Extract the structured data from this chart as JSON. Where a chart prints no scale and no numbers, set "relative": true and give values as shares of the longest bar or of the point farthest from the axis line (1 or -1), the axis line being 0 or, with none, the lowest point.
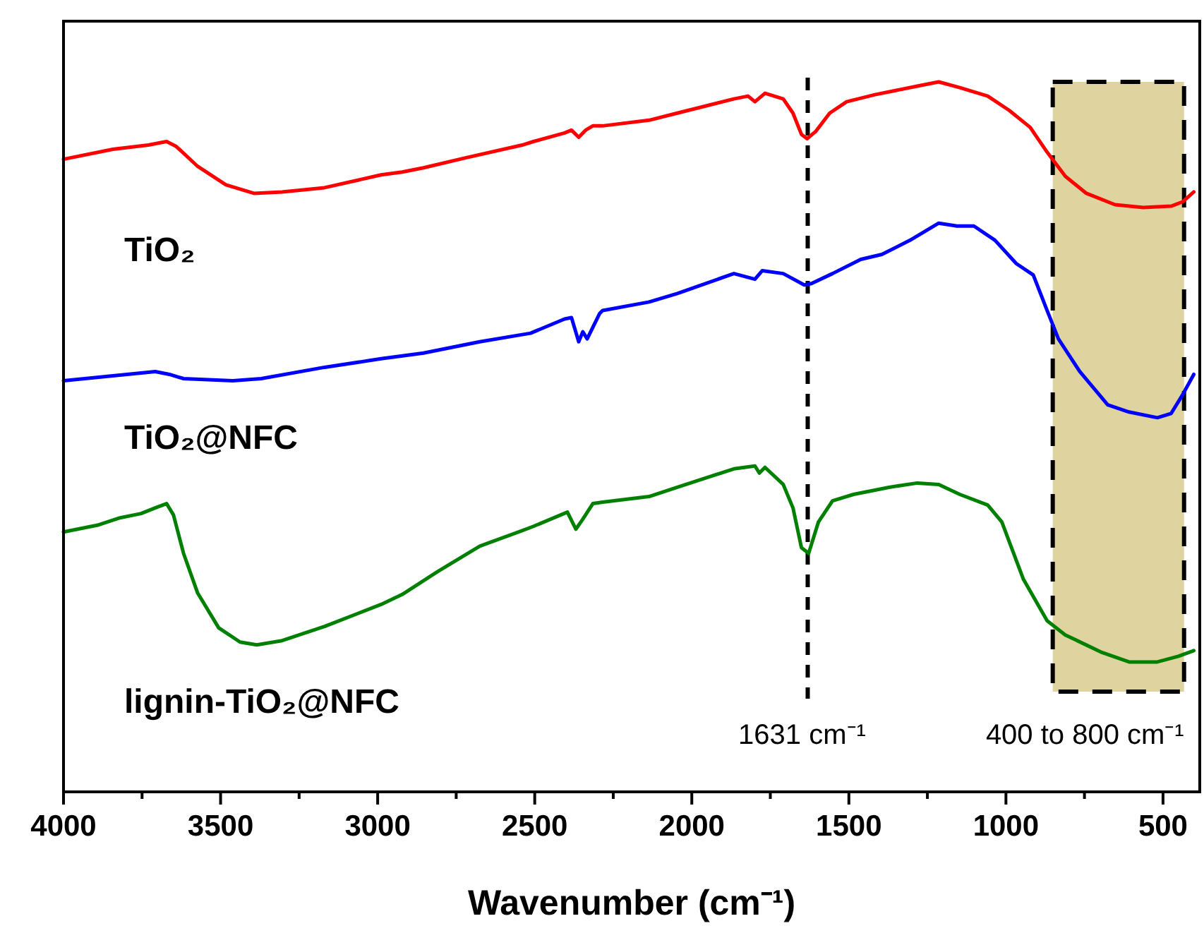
{
  "chart_data": {
    "type": "line",
    "xlabel": "Wavenumber (cm⁻¹)",
    "relative": true,
    "line_style": "solid",
    "marker": "none",
    "xlim": [
      4000,
      383
    ],
    "xticks": [
      4000,
      {
        "value": 3750,
        "label": null
      },
      3500,
      {
        "value": 3250,
        "label": null
      },
      3000,
      {
        "value": 2750,
        "label": null
      },
      2500,
      {
        "value": 2250,
        "label": null
      },
      2000,
      {
        "value": 1750,
        "label": null
      },
      1500,
      {
        "value": 1250,
        "label": null
      },
      1000,
      {
        "value": 750,
        "label": null
      },
      500
    ],
    "ref_lines": [
      {
        "axis": "x",
        "value": 1631,
        "label": "1631 cm⁻¹",
        "line_style": "dashed",
        "color": "#000000"
      }
    ],
    "bands": [
      {
        "axis": "x",
        "from": 851,
        "to": 433,
        "label": "400 to 800 cm⁻¹",
        "color": "#dfd4a0"
      }
    ],
    "series": [
      {
        "name": "TiO₂",
        "color": "#ff0000",
        "x": [
          4000,
          3843,
          3730,
          3672,
          3641,
          3573,
          3483,
          3394,
          3304,
          3169,
          2989,
          2922,
          2854,
          2720,
          2540,
          2504,
          2405,
          2383,
          2360,
          2338,
          2315,
          2284,
          2136,
          2046,
          1866,
          1821,
          1799,
          1767,
          1709,
          1678,
          1651,
          1633,
          1606,
          1561,
          1507,
          1417,
          1282,
          1214,
          1147,
          1058,
          990,
          923,
          869,
          811,
          744,
          653,
          563,
          474,
          438,
          402
        ],
        "values": [
          0.891,
          0.905,
          0.911,
          0.916,
          0.909,
          0.881,
          0.855,
          0.843,
          0.845,
          0.851,
          0.869,
          0.873,
          0.879,
          0.893,
          0.911,
          0.916,
          0.928,
          0.932,
          0.922,
          0.932,
          0.938,
          0.938,
          0.946,
          0.956,
          0.976,
          0.98,
          0.972,
          0.984,
          0.976,
          0.956,
          0.926,
          0.92,
          0.93,
          0.956,
          0.972,
          0.982,
          0.994,
          1.0,
          0.992,
          0.98,
          0.96,
          0.936,
          0.901,
          0.867,
          0.843,
          0.827,
          0.823,
          0.825,
          0.831,
          0.845
        ]
      },
      {
        "name": "TiO₂@NFC",
        "color": "#0000ff",
        "x": [
          4000,
          3843,
          3708,
          3663,
          3618,
          3461,
          3371,
          3169,
          2989,
          2854,
          2675,
          2540,
          2513,
          2405,
          2383,
          2360,
          2347,
          2333,
          2293,
          2284,
          2136,
          2046,
          1866,
          1799,
          1776,
          1709,
          1642,
          1619,
          1552,
          1462,
          1395,
          1305,
          1214,
          1156,
          1102,
          1035,
          967,
          913,
          869,
          833,
          765,
          676,
          608,
          518,
          474,
          438,
          402
        ],
        "values": [
          0.579,
          0.586,
          0.592,
          0.588,
          0.582,
          0.579,
          0.582,
          0.598,
          0.61,
          0.618,
          0.634,
          0.644,
          0.646,
          0.666,
          0.668,
          0.634,
          0.648,
          0.638,
          0.674,
          0.678,
          0.69,
          0.702,
          0.73,
          0.722,
          0.734,
          0.73,
          0.714,
          0.716,
          0.73,
          0.75,
          0.757,
          0.777,
          0.801,
          0.797,
          0.797,
          0.777,
          0.744,
          0.728,
          0.678,
          0.638,
          0.592,
          0.545,
          0.535,
          0.527,
          0.533,
          0.559,
          0.588
        ]
      },
      {
        "name": "lignin-TiO₂@NFC",
        "color": "#008000",
        "x": [
          4000,
          3888,
          3820,
          3753,
          3708,
          3672,
          3650,
          3618,
          3573,
          3506,
          3438,
          3385,
          3304,
          3169,
          2989,
          2922,
          2810,
          2675,
          2540,
          2504,
          2396,
          2369,
          2347,
          2315,
          2284,
          2136,
          2046,
          1866,
          1799,
          1785,
          1767,
          1709,
          1678,
          1651,
          1628,
          1597,
          1552,
          1485,
          1372,
          1282,
          1214,
          1147,
          1058,
          1013,
          945,
          869,
          811,
          698,
          608,
          518,
          451,
          402
        ],
        "values": [
          0.366,
          0.376,
          0.386,
          0.392,
          0.4,
          0.406,
          0.39,
          0.336,
          0.28,
          0.231,
          0.211,
          0.207,
          0.213,
          0.233,
          0.264,
          0.278,
          0.31,
          0.346,
          0.368,
          0.374,
          0.394,
          0.37,
          0.384,
          0.406,
          0.408,
          0.416,
          0.429,
          0.455,
          0.459,
          0.449,
          0.457,
          0.433,
          0.4,
          0.344,
          0.336,
          0.38,
          0.41,
          0.419,
          0.429,
          0.435,
          0.433,
          0.419,
          0.404,
          0.38,
          0.3,
          0.241,
          0.221,
          0.197,
          0.183,
          0.183,
          0.191,
          0.199
        ]
      }
    ]
  }
}
